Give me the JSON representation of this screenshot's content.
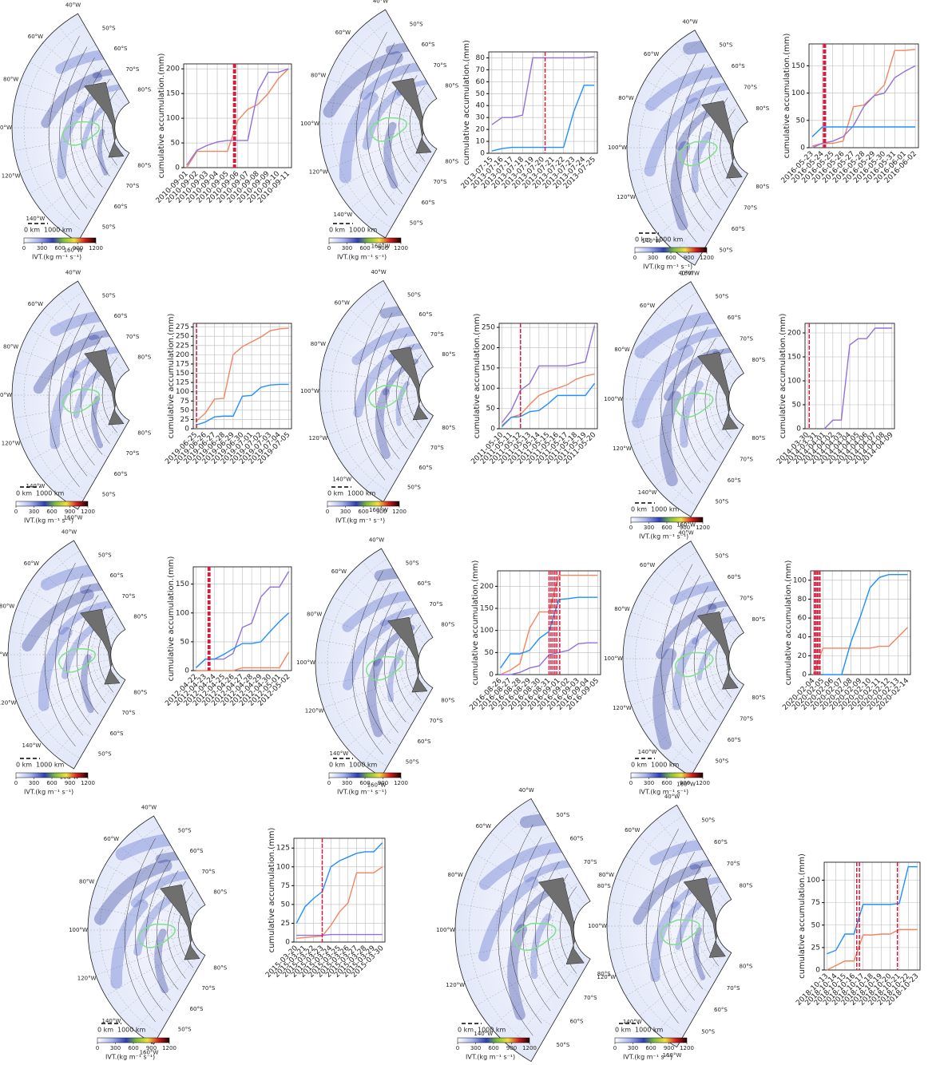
{
  "maps": {
    "lon_labels": [
      "40°W",
      "60°W",
      "80°W",
      "100°W",
      "120°W",
      "140°W",
      "160°W"
    ],
    "lat_labels": [
      "50°S",
      "60°S",
      "70°S",
      "80°S"
    ],
    "scale_labels": [
      "0 km",
      "1000 km"
    ],
    "colorbar": {
      "ticks": [
        0,
        300,
        600,
        900,
        1200
      ],
      "label": "IVT.(kg m⁻¹ s⁻¹)"
    }
  },
  "chart_data": [
    {
      "type": "line",
      "y_label": "cumulative accumulation.(mm)",
      "categories": [
        "2010-09-01",
        "2010-09-02",
        "2010-09-03",
        "2010-09-04",
        "2010-09-05",
        "2010-09-06",
        "2010-09-07",
        "2010-09-08",
        "2010-09-09",
        "2010-09-10",
        "2010-09-11"
      ],
      "series": [
        {
          "color": "#f4845f",
          "values": [
            0,
            33,
            33,
            33,
            33,
            95,
            118,
            128,
            150,
            180,
            200
          ]
        },
        {
          "color": "#9370db",
          "values": [
            5,
            35,
            45,
            52,
            55,
            55,
            55,
            155,
            193,
            193,
            200
          ]
        }
      ],
      "ylim": [
        0,
        210
      ],
      "yticks": [
        0,
        50,
        100,
        150,
        200
      ],
      "vlines": [
        4.6,
        4.7,
        4.8
      ],
      "grid": true
    },
    {
      "type": "line",
      "y_label": "cumulative accumulation.(mm)",
      "categories": [
        "2013-07-15",
        "2013-07-16",
        "2013-07-17",
        "2013-07-18",
        "2013-07-19",
        "2013-07-20",
        "2013-07-21",
        "2013-07-22",
        "2013-07-23",
        "2013-07-24",
        "2013-07-25"
      ],
      "series": [
        {
          "color": "#9370db",
          "values": [
            24,
            30,
            30,
            32,
            80,
            80,
            80,
            80,
            80,
            80,
            81
          ]
        },
        {
          "color": "#1e90ff",
          "values": [
            2,
            4,
            5,
            5,
            5,
            5,
            5,
            5,
            35,
            57,
            57
          ]
        }
      ],
      "ylim": [
        0,
        85
      ],
      "yticks": [
        0,
        10,
        20,
        30,
        40,
        50,
        60,
        70,
        80
      ],
      "vlines": [
        5.2
      ],
      "grid": true
    },
    {
      "type": "line",
      "y_label": "cumulative accumulation.(mm)",
      "categories": [
        "2016-05-23",
        "2016-05-24",
        "2016-05-25",
        "2016-05-26",
        "2016-05-27",
        "2016-05-28",
        "2016-05-29",
        "2016-05-30",
        "2016-05-31",
        "2016-06-01",
        "2016-06-02"
      ],
      "series": [
        {
          "color": "#f4845f",
          "values": [
            3,
            8,
            8,
            12,
            75,
            78,
            95,
            115,
            178,
            178,
            180
          ]
        },
        {
          "color": "#9370db",
          "values": [
            0,
            8,
            12,
            20,
            40,
            75,
            95,
            100,
            128,
            140,
            150
          ]
        },
        {
          "color": "#1e90ff",
          "values": [
            20,
            38,
            38,
            38,
            38,
            38,
            38,
            38,
            38,
            38,
            38
          ]
        }
      ],
      "ylim": [
        0,
        190
      ],
      "yticks": [
        0,
        50,
        100,
        150
      ],
      "vlines": [
        1.1,
        1.2,
        1.3
      ],
      "grid": true
    },
    {
      "type": "line",
      "y_label": "cumulative accumulation.(mm)",
      "categories": [
        "2019-06-25",
        "2019-06-26",
        "2019-06-27",
        "2019-06-28",
        "2019-06-29",
        "2019-06-30",
        "2019-07-01",
        "2019-07-02",
        "2019-07-03",
        "2019-07-04",
        "2019-07-05"
      ],
      "series": [
        {
          "color": "#f4845f",
          "values": [
            20,
            42,
            80,
            82,
            200,
            222,
            235,
            248,
            265,
            270,
            272
          ]
        },
        {
          "color": "#1e90ff",
          "values": [
            10,
            18,
            32,
            34,
            34,
            88,
            90,
            112,
            118,
            120,
            120
          ]
        }
      ],
      "ylim": [
        0,
        285
      ],
      "yticks": [
        0,
        25,
        50,
        75,
        100,
        125,
        150,
        175,
        200,
        225,
        250,
        275
      ],
      "vlines": [
        0.05
      ],
      "grid": true
    },
    {
      "type": "line",
      "y_label": "cumulative accumulation.(mm)",
      "categories": [
        "2011-05-10",
        "2011-05-11",
        "2011-05-12",
        "2011-05-13",
        "2011-05-14",
        "2011-05-15",
        "2011-05-16",
        "2011-05-17",
        "2011-05-18",
        "2011-05-19",
        "2011-05-20"
      ],
      "series": [
        {
          "color": "#9370db",
          "values": [
            15,
            45,
            95,
            112,
            155,
            155,
            155,
            155,
            160,
            165,
            255
          ]
        },
        {
          "color": "#f4845f",
          "values": [
            8,
            28,
            35,
            60,
            82,
            92,
            100,
            108,
            122,
            130,
            135
          ]
        },
        {
          "color": "#1e90ff",
          "values": [
            5,
            28,
            30,
            42,
            45,
            62,
            82,
            82,
            82,
            82,
            112
          ]
        }
      ],
      "ylim": [
        0,
        260
      ],
      "yticks": [
        0,
        50,
        100,
        150,
        200,
        250
      ],
      "vlines": [
        2.0
      ],
      "grid": true
    },
    {
      "type": "line",
      "y_label": "cumulative accumulation.(mm)",
      "categories": [
        "2014-03-30",
        "2014-03-31",
        "2014-04-01",
        "2014-04-02",
        "2014-04-03",
        "2014-04-04",
        "2014-04-05",
        "2014-04-06",
        "2014-04-07",
        "2014-04-08",
        "2014-04-09"
      ],
      "series": [
        {
          "color": "#9370db",
          "values": [
            null,
            null,
            0,
            18,
            18,
            175,
            188,
            188,
            210,
            210,
            210
          ]
        }
      ],
      "ylim": [
        0,
        220
      ],
      "yticks": [
        0,
        50,
        100,
        150,
        200
      ],
      "vlines": [
        0.2
      ],
      "grid": true
    },
    {
      "type": "line",
      "y_label": "cumulative accumulation.(mm)",
      "categories": [
        "2012-04-22",
        "2012-04-23",
        "2012-04-24",
        "2012-04-25",
        "2012-04-26",
        "2012-04-27",
        "2012-04-28",
        "2012-04-29",
        "2012-04-30",
        "2012-05-01",
        "2012-05-02"
      ],
      "series": [
        {
          "color": "#9370db",
          "values": [
            5,
            20,
            20,
            20,
            30,
            75,
            82,
            128,
            145,
            145,
            172
          ]
        },
        {
          "color": "#1e90ff",
          "values": [
            5,
            20,
            20,
            28,
            38,
            47,
            47,
            50,
            68,
            85,
            100
          ]
        },
        {
          "color": "#f4845f",
          "values": [
            0,
            0,
            0,
            0,
            0,
            5,
            5,
            5,
            5,
            5,
            32
          ]
        }
      ],
      "ylim": [
        0,
        180
      ],
      "yticks": [
        0,
        50,
        100,
        150
      ],
      "vlines": [
        1.3,
        1.4,
        1.5
      ],
      "grid": true
    },
    {
      "type": "line",
      "y_label": "cumulative accumulation.(mm)",
      "categories": [
        "2016-08-26",
        "2016-08-27",
        "2016-08-28",
        "2016-08-29",
        "2016-08-30",
        "2016-08-31",
        "2016-09-01",
        "2016-09-02",
        "2016-09-03",
        "2016-09-04",
        "2016-09-05"
      ],
      "series": [
        {
          "color": "#f4845f",
          "values": [
            0,
            10,
            25,
            105,
            142,
            142,
            225,
            225,
            225,
            225,
            225
          ]
        },
        {
          "color": "#1e90ff",
          "values": [
            15,
            47,
            47,
            55,
            82,
            98,
            170,
            172,
            175,
            175,
            175
          ]
        },
        {
          "color": "#9370db",
          "values": [
            0,
            0,
            5,
            15,
            20,
            45,
            50,
            55,
            70,
            72,
            72
          ]
        }
      ],
      "ylim": [
        0,
        235
      ],
      "yticks": [
        0,
        50,
        100,
        150,
        200
      ],
      "vlines": [
        5.0,
        5.2,
        5.4,
        5.6,
        5.8,
        6.1
      ],
      "grid": true
    },
    {
      "type": "line",
      "y_label": "cumulative accumulation.(mm)",
      "categories": [
        "2020-02-04",
        "2020-02-05",
        "2020-02-06",
        "2020-02-07",
        "2020-02-08",
        "2020-02-09",
        "2020-02-10",
        "2020-02-11",
        "2020-02-12",
        "2020-02-13",
        "2020-02-14"
      ],
      "series": [
        {
          "color": "#f4845f",
          "values": [
            0,
            28,
            28,
            28,
            28,
            28,
            28,
            30,
            30,
            40,
            50
          ]
        },
        {
          "color": "#1e90ff",
          "values": [
            null,
            0,
            0,
            0,
            35,
            62,
            92,
            103,
            106,
            106,
            106
          ]
        }
      ],
      "ylim": [
        0,
        110
      ],
      "yticks": [
        0,
        20,
        40,
        60,
        80,
        100
      ],
      "vlines": [
        0.1,
        0.25,
        0.4,
        0.55,
        0.7
      ],
      "grid": true
    },
    {
      "type": "line",
      "y_label": "cumulative accumulation.(mm)",
      "categories": [
        "2015-03-20",
        "2015-03-21",
        "2015-03-22",
        "2015-03-23",
        "2015-03-24",
        "2015-03-25",
        "2015-03-26",
        "2015-03-27",
        "2015-03-28",
        "2015-03-29",
        "2015-03-30"
      ],
      "series": [
        {
          "color": "#1e90ff",
          "values": [
            25,
            47,
            58,
            67,
            100,
            108,
            113,
            118,
            120,
            120,
            132
          ]
        },
        {
          "color": "#f4845f",
          "values": [
            5,
            6,
            7,
            8,
            22,
            40,
            52,
            92,
            92,
            92,
            100
          ]
        },
        {
          "color": "#9370db",
          "values": [
            9,
            9,
            9,
            9,
            10,
            10,
            10,
            10,
            10,
            10,
            10
          ]
        }
      ],
      "ylim": [
        0,
        138
      ],
      "yticks": [
        0,
        25,
        50,
        75,
        100,
        125
      ],
      "vlines": [
        3.0
      ],
      "grid": true
    },
    {
      "type": "line",
      "y_label": "cumulative accumulation.(mm)",
      "categories": [
        "2018-10-13",
        "2018-10-14",
        "2018-10-15",
        "2018-10-16",
        "2018-10-17",
        "2018-10-18",
        "2018-10-19",
        "2018-10-20",
        "2018-10-21",
        "2018-10-22",
        "2018-10-23"
      ],
      "series": [
        {
          "color": "#1e90ff",
          "values": [
            18,
            22,
            40,
            40,
            73,
            73,
            73,
            73,
            74,
            115,
            115
          ]
        },
        {
          "color": "#f4845f",
          "values": [
            0,
            5,
            10,
            10,
            39,
            39,
            40,
            40,
            45,
            45,
            45
          ]
        }
      ],
      "ylim": [
        0,
        120
      ],
      "yticks": [
        0,
        25,
        50,
        75,
        100
      ],
      "vlines": [
        3.3,
        3.6,
        7.8
      ],
      "grid": true
    }
  ]
}
